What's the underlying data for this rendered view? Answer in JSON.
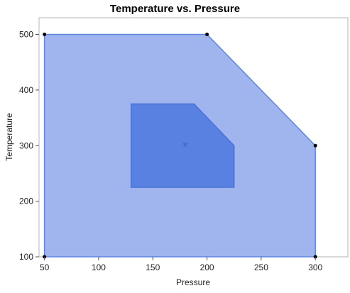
{
  "chart_data": {
    "type": "area",
    "title": "Temperature vs. Pressure",
    "xlabel": "Pressure",
    "ylabel": "Temperature",
    "xlim": [
      45,
      330
    ],
    "ylim": [
      100,
      530
    ],
    "xticks": [
      50,
      100,
      150,
      200,
      250,
      300
    ],
    "yticks": [
      100,
      200,
      300,
      400,
      500
    ],
    "grid": false,
    "regions": [
      {
        "role": "outer",
        "color": "#7b98e6",
        "opacity": 0.72,
        "stroke": "#5f84e0",
        "points": [
          [
            50,
            100
          ],
          [
            50,
            500
          ],
          [
            200,
            500
          ],
          [
            300,
            300
          ],
          [
            300,
            100
          ]
        ]
      },
      {
        "role": "inner",
        "color": "#4f7ae0",
        "opacity": 0.88,
        "stroke": "#4a72d8",
        "points": [
          [
            130,
            225
          ],
          [
            130,
            375
          ],
          [
            188,
            375
          ],
          [
            225,
            300
          ],
          [
            225,
            225
          ]
        ]
      }
    ],
    "vertex_points": [
      [
        50,
        500
      ],
      [
        200,
        500
      ],
      [
        300,
        300
      ],
      [
        50,
        100
      ],
      [
        300,
        100
      ]
    ],
    "center_marker": {
      "x": 180,
      "y": 300,
      "symbol": "*",
      "color": "#3b5fd0"
    }
  }
}
